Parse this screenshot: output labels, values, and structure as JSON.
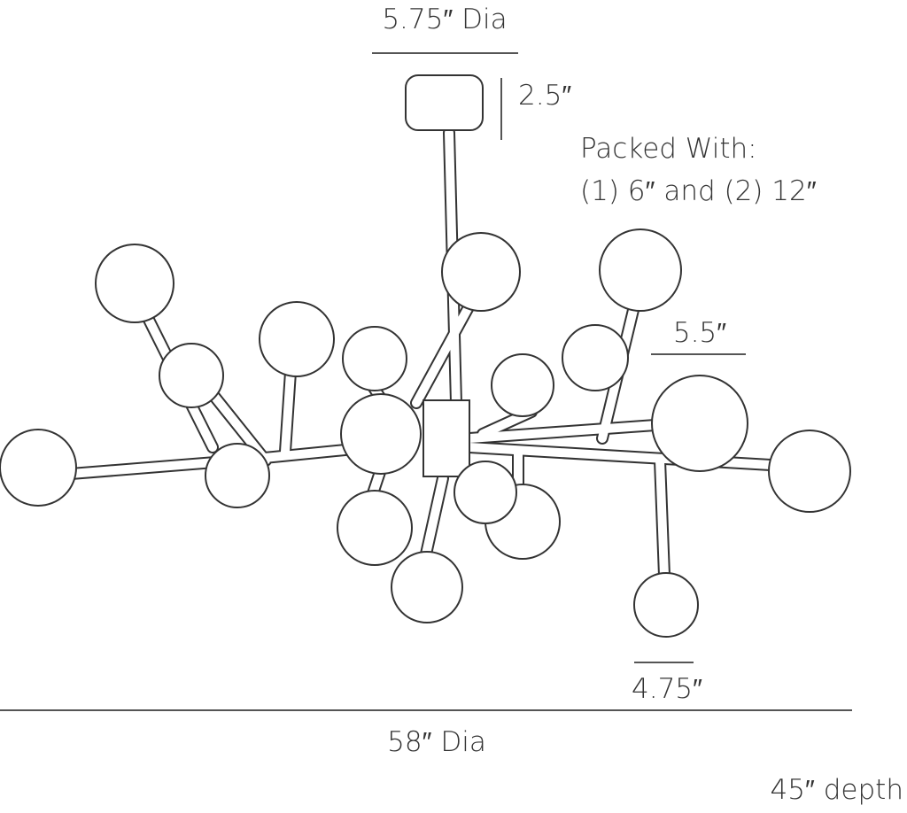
{
  "dimensions": {
    "canopy_diameter": "5.75″ Dia",
    "canopy_height": "2.5″",
    "packed_title": "Packed With:",
    "packed_rods": "(1) 6″ and (2) 12″",
    "large_globe": "5.5″",
    "small_globe": "4.75″",
    "overall_diameter": "58″ Dia",
    "depth": "45″ depth"
  }
}
